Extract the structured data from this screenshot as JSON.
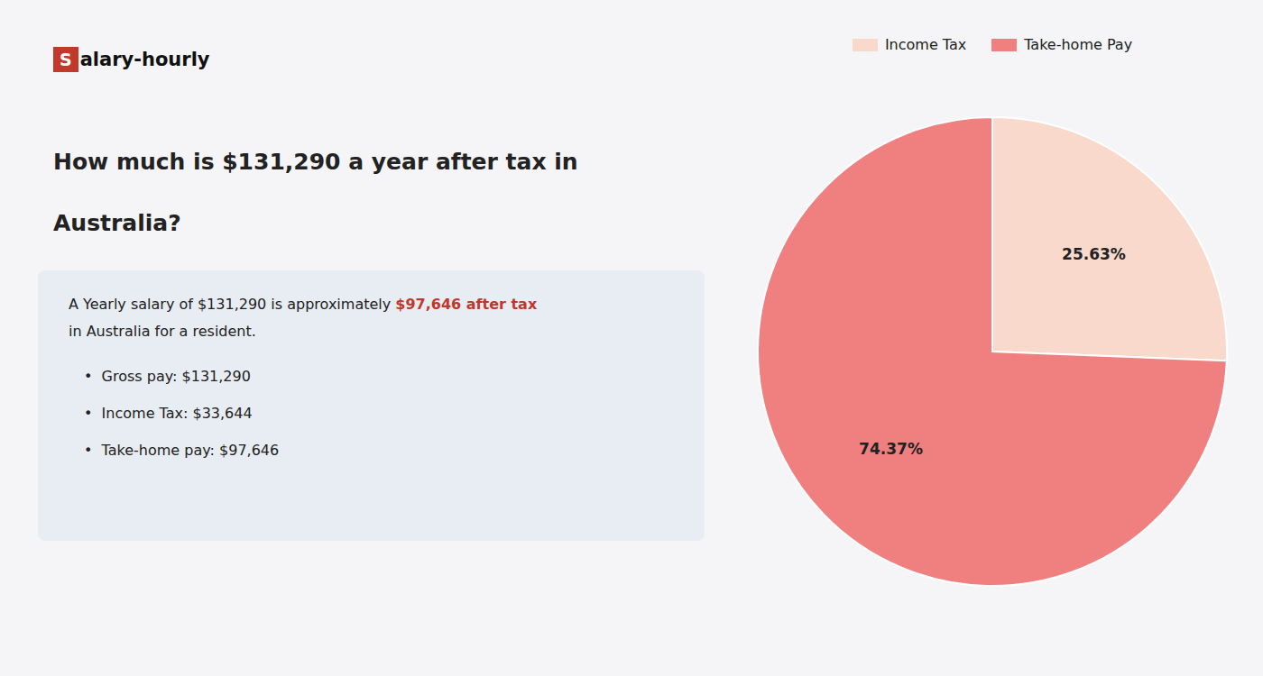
{
  "chart_data": {
    "type": "pie",
    "categories": [
      "Income Tax",
      "Take-home Pay"
    ],
    "values": [
      25.63,
      74.37
    ],
    "value_labels": [
      "25.63%",
      "74.37%"
    ],
    "colors": [
      "#f9d9cc",
      "#f08080"
    ],
    "data_labels": true,
    "legend": "top",
    "annotations": [
      "S",
      "alary-hourly",
      "How much is $131,290 a year after tax in",
      "Australia?",
      "A Yearly salary of $131,290 is approximately ",
      "$97,646 after tax",
      "in Australia for a resident.",
      "•  Gross pay: $131,290",
      "•  Income Tax: $33,644",
      "•  Take-home pay: $97,646"
    ]
  }
}
